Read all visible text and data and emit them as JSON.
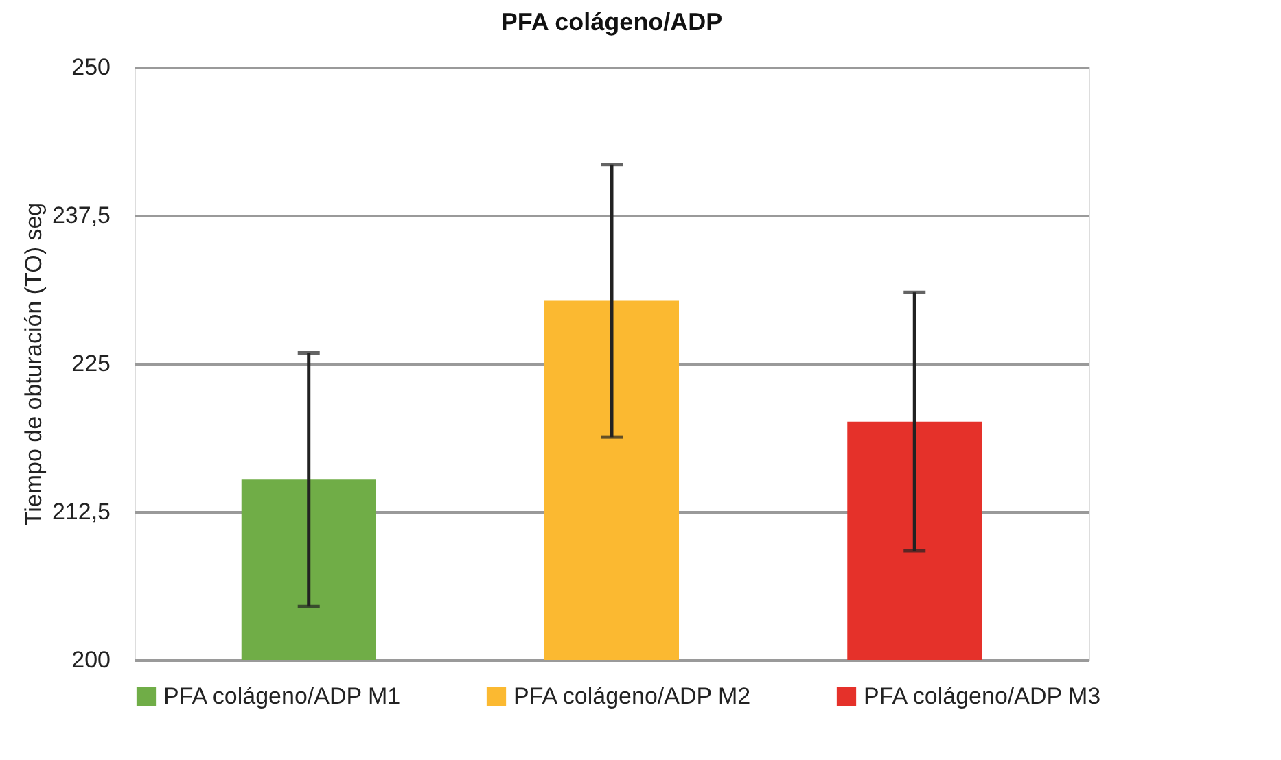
{
  "chart_data": {
    "type": "bar",
    "title": "PFA colágeno/ADP",
    "ylabel": "Tiempo de obturación (TO) seg",
    "categories": [
      null,
      null,
      null
    ],
    "series": [
      {
        "name": "PFA colágeno/ADP M1",
        "color": "#70ad47",
        "values": [
          215.2,
          null,
          null
        ],
        "errors": [
          10.7,
          null,
          null
        ]
      },
      {
        "name": "PFA colágeno/ADP M2",
        "color": "#fbb931",
        "values": [
          null,
          230.3,
          null
        ],
        "errors": [
          null,
          11.5,
          null
        ]
      },
      {
        "name": "PFA colágeno/ADP M3",
        "color": "#e5312a",
        "values": [
          null,
          null,
          220.1
        ],
        "errors": [
          null,
          null,
          10.9
        ]
      }
    ],
    "ylim": [
      200,
      250
    ],
    "yticks": [
      200,
      {
        "value": 212.5,
        "label": "212,5"
      },
      225,
      {
        "value": 237.5,
        "label": "237,5"
      },
      250
    ],
    "grid": "y",
    "legend": "bottom",
    "tick_labels": "y"
  }
}
